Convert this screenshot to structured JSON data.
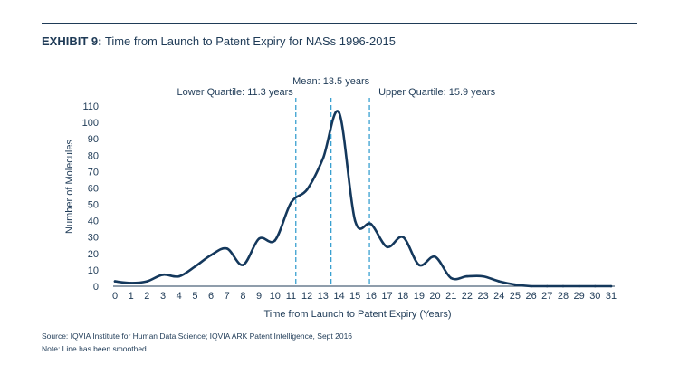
{
  "header": {
    "exhibit_label": "EXHIBIT 9:",
    "title": "Time from Launch to Patent Expiry for NASs 1996-2015"
  },
  "footer": {
    "source": "Source: IQVIA Institute for Human Data Science; IQVIA ARK Patent Intelligence, Sept 2016",
    "note": "Note: Line has been smoothed"
  },
  "colors": {
    "line": "#14385c",
    "reference": "#3aa0d0",
    "text": "#1f3b57"
  },
  "chart_data": {
    "type": "line",
    "title": "Time from Launch to Patent Expiry for NASs 1996-2015",
    "xlabel": "Time from Launch to Patent Expiry (Years)",
    "ylabel": "Number of Molecules",
    "xlim": [
      0,
      31
    ],
    "ylim": [
      0,
      110
    ],
    "xticks": [
      0,
      1,
      2,
      3,
      4,
      5,
      6,
      7,
      8,
      9,
      10,
      11,
      12,
      13,
      14,
      15,
      16,
      17,
      18,
      19,
      20,
      21,
      22,
      23,
      24,
      25,
      26,
      27,
      28,
      29,
      30,
      31
    ],
    "yticks": [
      0,
      10,
      20,
      30,
      40,
      50,
      60,
      70,
      80,
      90,
      100,
      110
    ],
    "grid": false,
    "smoothed": true,
    "series": [
      {
        "x": [
          0,
          1,
          2,
          3,
          4,
          5,
          6,
          7,
          8,
          9,
          10,
          11,
          12,
          13,
          14,
          15,
          16,
          17,
          18,
          19,
          20,
          21,
          22,
          23,
          24,
          25,
          26,
          27,
          28,
          29,
          30,
          31
        ],
        "y": [
          3,
          2,
          3,
          7,
          6,
          12,
          19,
          23,
          13,
          29,
          28,
          51,
          59,
          78,
          106,
          40,
          38,
          24,
          30,
          13,
          18,
          5,
          6,
          6,
          3,
          1,
          0,
          0,
          0,
          0,
          0,
          0
        ]
      }
    ],
    "reference_lines": [
      {
        "x": 11.3,
        "label": "Lower Quartile: 11.3 years"
      },
      {
        "x": 13.5,
        "label": "Mean: 13.5 years"
      },
      {
        "x": 15.9,
        "label": "Upper Quartile: 15.9 years"
      }
    ]
  }
}
